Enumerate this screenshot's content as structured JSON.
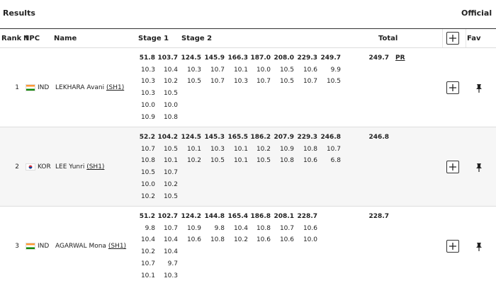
{
  "header": {
    "title": "Results",
    "status": "Official"
  },
  "table": {
    "columns": {
      "rank": "Rank ↑",
      "npc": "NPC",
      "name": "Name",
      "stage1": "Stage 1",
      "stage2": "Stage 2",
      "total": "Total",
      "fav": "Fav"
    },
    "rows": [
      {
        "rank": "1",
        "npc": "IND",
        "name": "LEKHARA Avani",
        "sport_class": "(SH1)",
        "stages": [
          [
            "51.8",
            "10.3",
            "10.3",
            "10.3",
            "10.0",
            "10.9"
          ],
          [
            "103.7",
            "10.4",
            "10.2",
            "10.5",
            "10.0",
            "10.8"
          ],
          [
            "124.5",
            "10.3",
            "10.5"
          ],
          [
            "145.9",
            "10.7",
            "10.7"
          ],
          [
            "166.3",
            "10.1",
            "10.3"
          ],
          [
            "187.0",
            "10.0",
            "10.7"
          ],
          [
            "208.0",
            "10.5",
            "10.5"
          ],
          [
            "229.3",
            "10.6",
            "10.7"
          ],
          [
            "249.7",
            "9.9",
            "10.5"
          ]
        ],
        "total": "249.7",
        "record": "PR"
      },
      {
        "rank": "2",
        "npc": "KOR",
        "name": "LEE Yunri",
        "sport_class": "(SH1)",
        "stages": [
          [
            "52.2",
            "10.7",
            "10.8",
            "10.5",
            "10.0",
            "10.2"
          ],
          [
            "104.2",
            "10.5",
            "10.1",
            "10.7",
            "10.2",
            "10.5"
          ],
          [
            "124.5",
            "10.1",
            "10.2"
          ],
          [
            "145.3",
            "10.3",
            "10.5"
          ],
          [
            "165.5",
            "10.1",
            "10.1"
          ],
          [
            "186.2",
            "10.2",
            "10.5"
          ],
          [
            "207.9",
            "10.9",
            "10.8"
          ],
          [
            "229.3",
            "10.8",
            "10.6"
          ],
          [
            "246.8",
            "10.7",
            "6.8"
          ]
        ],
        "total": "246.8"
      },
      {
        "rank": "3",
        "npc": "IND",
        "name": "AGARWAL Mona",
        "sport_class": "(SH1)",
        "stages": [
          [
            "51.2",
            "9.8",
            "10.4",
            "10.2",
            "10.7",
            "10.1"
          ],
          [
            "102.7",
            "10.7",
            "10.4",
            "10.4",
            "9.7",
            "10.3"
          ],
          [
            "124.2",
            "10.9",
            "10.6"
          ],
          [
            "144.8",
            "9.8",
            "10.8"
          ],
          [
            "165.4",
            "10.4",
            "10.2"
          ],
          [
            "186.8",
            "10.8",
            "10.6"
          ],
          [
            "208.1",
            "10.7",
            "10.6"
          ],
          [
            "228.7",
            "10.6",
            "10.0"
          ]
        ],
        "total": "228.7"
      }
    ]
  }
}
